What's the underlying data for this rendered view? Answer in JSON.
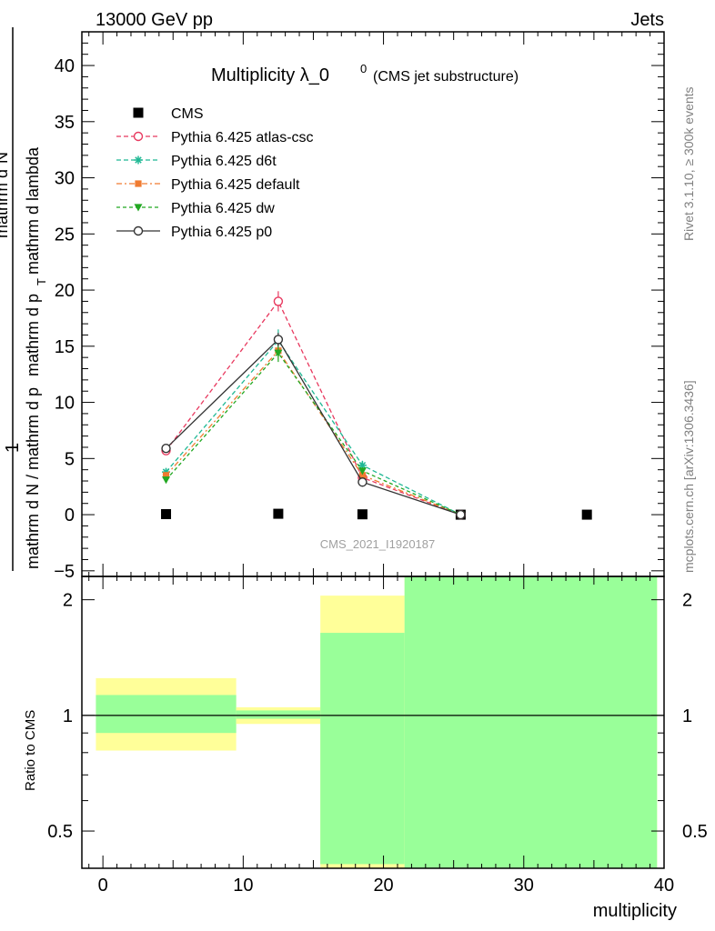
{
  "header": {
    "left": "13000 GeV pp",
    "right": "Jets"
  },
  "side_labels": {
    "rivet": "Rivet 3.1.10, ≥ 300k events",
    "mcplots": "mcplots.cern.ch [arXiv:1306.3436]"
  },
  "chart_data": [
    {
      "type": "line",
      "title": "Multiplicity λ_0",
      "title_sup": "0",
      "subtitle": "(CMS jet substructure)",
      "watermark": "CMS_2021_I1920187",
      "ylabel_numerator": "1",
      "ylabel_denominator": "mathrm d N / mathrm d p",
      "ylabel_numerator_full": "mathrm d",
      "ylabel_numerator_n": "N",
      "ylabel_numerator_rest": "mathrm d p",
      "ylabel_numerator_tail": "mathrm d lambda",
      "ylabel_sub": "T",
      "xlim": [
        -1.5,
        40
      ],
      "ylim": [
        -5.5,
        43
      ],
      "y_ticks": [
        -5,
        0,
        5,
        10,
        15,
        20,
        25,
        30,
        35,
        40
      ],
      "y_tick_labels": [
        "−5",
        "0",
        "5",
        "10",
        "15",
        "20",
        "25",
        "30",
        "35",
        "40"
      ],
      "legend_position": "top-left",
      "series": [
        {
          "name": "CMS",
          "color": "#000000",
          "marker": "square",
          "dash": "none",
          "line": false,
          "x": [
            4.5,
            12.5,
            18.5,
            25.5,
            34.5
          ],
          "y": [
            0.05,
            0.08,
            0.03,
            0.0,
            0.0
          ],
          "err": [
            0,
            0,
            0,
            0,
            0
          ]
        },
        {
          "name": "Pythia 6.425 atlas-csc",
          "color": "#e8395f",
          "marker": "open-circle",
          "dash": "5,3",
          "line": true,
          "x": [
            4.5,
            12.5,
            18.5,
            25.5
          ],
          "y": [
            5.7,
            19.0,
            3.3,
            0.0
          ],
          "err": [
            0.3,
            0.9,
            0.3,
            0.05
          ]
        },
        {
          "name": "Pythia 6.425 d6t",
          "color": "#1fb894",
          "marker": "star",
          "dash": "5,3",
          "line": true,
          "x": [
            4.5,
            12.5,
            18.5,
            25.5
          ],
          "y": [
            3.8,
            15.5,
            4.4,
            0.0
          ],
          "err": [
            0.3,
            1.0,
            0.4,
            0.05
          ]
        },
        {
          "name": "Pythia 6.425 default",
          "color": "#f07b30",
          "marker": "filled-square",
          "dash": "6,3,2,3",
          "line": true,
          "x": [
            4.5,
            12.5,
            18.5,
            25.5
          ],
          "y": [
            3.5,
            14.6,
            3.5,
            0.0
          ],
          "err": [
            0.3,
            0.8,
            0.3,
            0.05
          ]
        },
        {
          "name": "Pythia 6.425 dw",
          "color": "#22a822",
          "marker": "filled-triangle-down",
          "dash": "4,3",
          "line": true,
          "x": [
            4.5,
            12.5,
            18.5,
            25.5
          ],
          "y": [
            3.1,
            14.4,
            3.9,
            0.0
          ],
          "err": [
            0.3,
            0.8,
            0.3,
            0.05
          ]
        },
        {
          "name": "Pythia 6.425 p0",
          "color": "#333333",
          "marker": "open-circle",
          "dash": "none",
          "line": true,
          "x": [
            4.5,
            12.5,
            18.5,
            25.5
          ],
          "y": [
            5.9,
            15.6,
            2.9,
            0.0
          ],
          "err": [
            0.2,
            0.6,
            0.2,
            0.05
          ]
        }
      ]
    },
    {
      "type": "area",
      "ylabel": "Ratio to CMS",
      "xlabel": "multiplicity",
      "scale": "log",
      "xlim": [
        -1.5,
        40
      ],
      "ylim": [
        0.4,
        2.3
      ],
      "x_ticks": [
        0,
        10,
        20,
        30,
        40
      ],
      "y_ticks": [
        0.5,
        1,
        2
      ],
      "y_tick_labels": [
        "0.5",
        "1",
        "2"
      ],
      "reference": 1,
      "bins": [
        {
          "x0": -0.5,
          "x1": 9.5,
          "yellow": [
            0.81,
            1.25
          ],
          "green": [
            0.9,
            1.13
          ]
        },
        {
          "x0": 9.5,
          "x1": 15.5,
          "yellow": [
            0.95,
            1.05
          ],
          "green": [
            0.98,
            1.03
          ]
        },
        {
          "x0": 15.5,
          "x1": 21.5,
          "yellow": [
            0.38,
            2.05
          ],
          "green": [
            0.41,
            1.64
          ]
        },
        {
          "x0": 21.5,
          "x1": 39.5,
          "yellow": [
            0.38,
            2.35
          ],
          "green": [
            0.38,
            2.35
          ]
        }
      ]
    }
  ]
}
